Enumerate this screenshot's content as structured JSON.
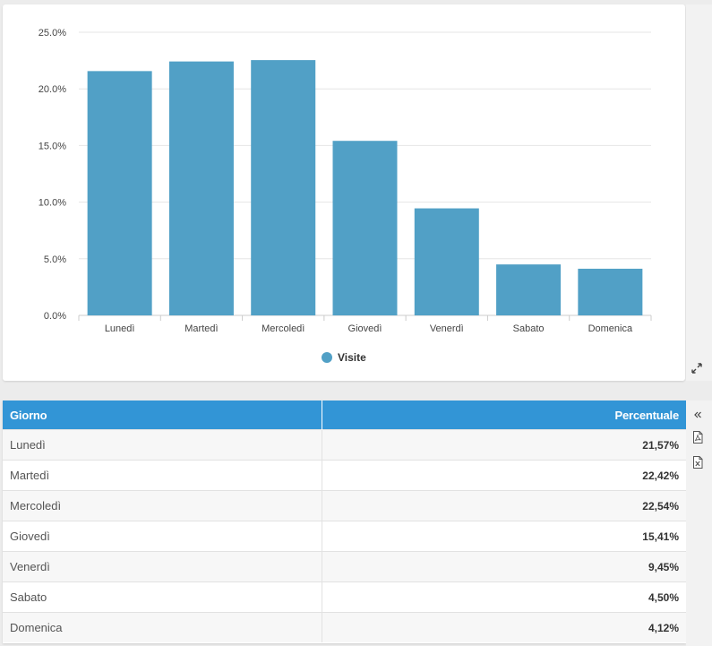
{
  "chart_data": {
    "type": "bar",
    "categories": [
      "Lunedì",
      "Martedì",
      "Mercoledì",
      "Giovedì",
      "Venerdì",
      "Sabato",
      "Domenica"
    ],
    "series": [
      {
        "name": "Visite",
        "values": [
          21.57,
          22.42,
          22.54,
          15.41,
          9.45,
          4.5,
          4.12
        ]
      }
    ],
    "ylim": [
      0,
      25
    ],
    "yticks": [
      0,
      5,
      10,
      15,
      20,
      25
    ],
    "ytick_labels": [
      "0.0%",
      "5.0%",
      "10.0%",
      "15.0%",
      "20.0%",
      "25.0%"
    ],
    "legend_position": "bottom-center",
    "grid": true,
    "bar_color": "#51a0c6"
  },
  "table": {
    "headers": {
      "day": "Giorno",
      "pct": "Percentuale"
    },
    "rows": [
      {
        "day": "Lunedì",
        "pct": "21,57%"
      },
      {
        "day": "Martedì",
        "pct": "22,42%"
      },
      {
        "day": "Mercoledì",
        "pct": "22,54%"
      },
      {
        "day": "Giovedì",
        "pct": "15,41%"
      },
      {
        "day": "Venerdì",
        "pct": "9,45%"
      },
      {
        "day": "Sabato",
        "pct": "4,50%"
      },
      {
        "day": "Domenica",
        "pct": "4,12%"
      }
    ],
    "header_color": "#3295d6"
  },
  "icons": {
    "expand": "expand-icon",
    "collapse": "double-chevron-left-icon",
    "pdf": "pdf-export-icon",
    "excel": "excel-export-icon"
  }
}
